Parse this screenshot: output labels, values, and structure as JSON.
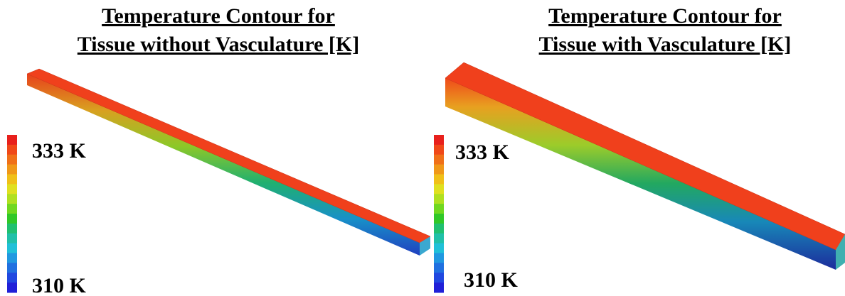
{
  "panels": [
    {
      "title": [
        "Temperature Contour for",
        "Tissue without Vasculature [K]"
      ],
      "colorbar": {
        "max_label": "333 K",
        "min_label": "310 K"
      }
    },
    {
      "title": [
        "Temperature Contour for",
        "Tissue with Vasculature [K]"
      ],
      "colorbar": {
        "max_label": "333 K",
        "min_label": "310 K"
      }
    }
  ]
}
